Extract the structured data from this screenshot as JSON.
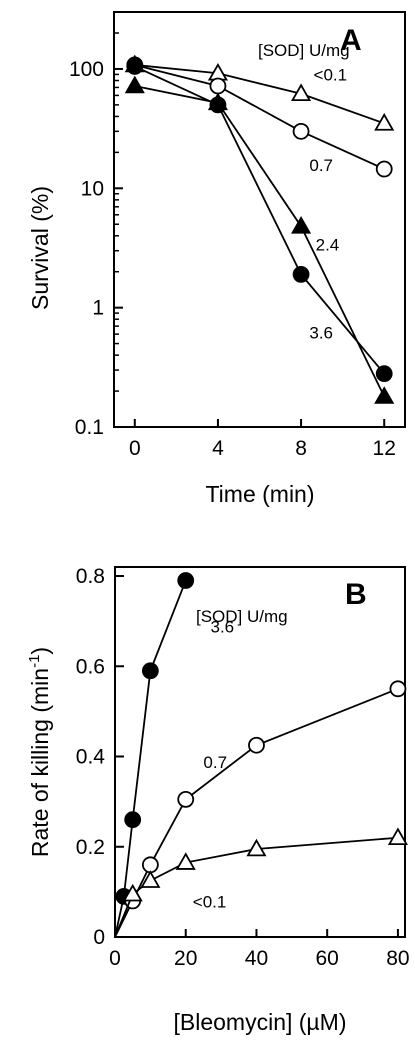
{
  "chart_data": [
    {
      "panel": "A",
      "type": "line",
      "xlabel": "Time (min)",
      "ylabel": "Survival (%)",
      "xlim": [
        -1,
        13
      ],
      "ylim": [
        0.1,
        300
      ],
      "yscale": "log",
      "xticks": [
        0,
        4,
        8,
        12
      ],
      "xtick_labels": [
        "0",
        "4",
        "8",
        "12"
      ],
      "yticks": [
        0.1,
        1,
        10,
        100
      ],
      "ytick_labels": [
        "0.1",
        "1",
        "10",
        "100"
      ],
      "grid": false,
      "legend_title": "[SOD] U/mg",
      "series": [
        {
          "name": "<0.1",
          "marker": "triangle-open",
          "x": [
            0,
            4,
            8,
            12
          ],
          "y": [
            108,
            92,
            62,
            35
          ],
          "label_x": 8.6,
          "label_y": 80
        },
        {
          "name": "0.7",
          "marker": "circle-open",
          "x": [
            0,
            4,
            8,
            12
          ],
          "y": [
            108,
            72,
            30,
            14.5
          ],
          "label_x": 8.4,
          "label_y": 14
        },
        {
          "name": "2.4",
          "marker": "triangle-filled",
          "x": [
            0,
            4,
            8,
            12
          ],
          "y": [
            72,
            52,
            4.8,
            0.18
          ],
          "label_x": 8.7,
          "label_y": 3.0
        },
        {
          "name": "3.6",
          "marker": "circle-filled",
          "x": [
            0,
            4,
            8,
            12
          ],
          "y": [
            105,
            50,
            1.9,
            0.28
          ],
          "label_x": 8.4,
          "label_y": 0.55
        }
      ]
    },
    {
      "panel": "B",
      "type": "line",
      "xlabel": "[Bleomycin] (µM)",
      "ylabel": "Rate of killing (min⁻¹)",
      "xlim": [
        0,
        82
      ],
      "ylim": [
        0,
        0.82
      ],
      "yscale": "linear",
      "xticks": [
        0,
        20,
        40,
        60,
        80
      ],
      "xtick_labels": [
        "0",
        "20",
        "40",
        "60",
        "80"
      ],
      "yticks": [
        0,
        0.2,
        0.4,
        0.6,
        0.8
      ],
      "ytick_labels": [
        "0",
        "0.2",
        "0.4",
        "0.6",
        "0.8"
      ],
      "grid": false,
      "legend_title": "[SOD] U/mg",
      "series": [
        {
          "name": "3.6",
          "marker": "circle-filled",
          "x": [
            0,
            2.5,
            5,
            10,
            20
          ],
          "y": [
            0,
            0.09,
            0.26,
            0.59,
            0.79
          ],
          "label_x": 27,
          "label_y": 0.675
        },
        {
          "name": "0.7",
          "marker": "circle-open",
          "x": [
            0,
            5,
            10,
            20,
            40,
            80
          ],
          "y": [
            0,
            0.08,
            0.16,
            0.305,
            0.425,
            0.55
          ],
          "label_x": 25,
          "label_y": 0.375
        },
        {
          "name": "<0.1",
          "marker": "triangle-open",
          "x": [
            0,
            5,
            10,
            20,
            40,
            80
          ],
          "y": [
            0,
            0.095,
            0.125,
            0.165,
            0.195,
            0.22
          ],
          "label_x": 22,
          "label_y": 0.065
        }
      ]
    }
  ]
}
